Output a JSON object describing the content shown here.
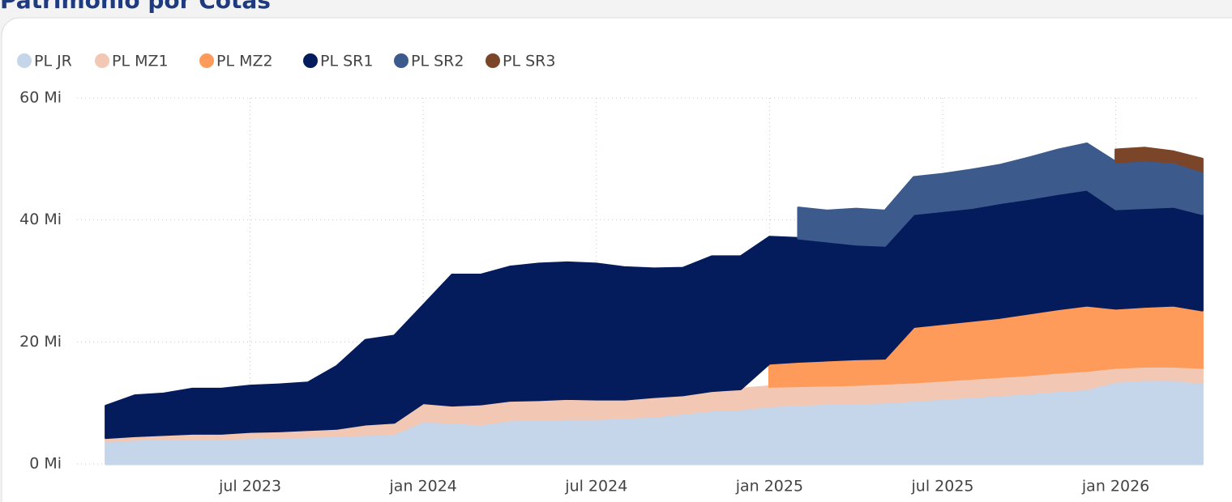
{
  "title": "Patrimônio por Cotas",
  "chart_data": {
    "type": "stacked_area",
    "x": [
      "2023-02",
      "2023-03",
      "2023-04",
      "2023-05",
      "2023-06",
      "2023-07",
      "2023-08",
      "2023-09",
      "2023-10",
      "2023-11",
      "2023-12",
      "2024-01",
      "2024-02",
      "2024-03",
      "2024-04",
      "2024-05",
      "2024-06",
      "2024-07",
      "2024-08",
      "2024-09",
      "2024-10",
      "2024-11",
      "2024-12",
      "2025-01",
      "2025-02",
      "2025-03",
      "2025-04",
      "2025-05",
      "2025-06",
      "2025-07",
      "2025-08",
      "2025-09",
      "2025-10",
      "2025-11",
      "2025-12",
      "2026-01",
      "2026-02",
      "2026-03",
      "2026-04"
    ],
    "series": [
      {
        "name": "PL JR",
        "color": "#c5d5ea",
        "values": [
          3.7,
          4.0,
          4.1,
          4.2,
          4.1,
          4.3,
          4.4,
          4.5,
          4.6,
          4.8,
          5.0,
          7.0,
          6.8,
          6.5,
          7.2,
          7.3,
          7.4,
          7.4,
          7.6,
          7.8,
          8.3,
          8.8,
          9.0,
          9.5,
          9.7,
          9.9,
          10.0,
          10.1,
          10.4,
          10.7,
          11.0,
          11.3,
          11.6,
          12.0,
          12.3,
          13.5,
          13.8,
          13.8,
          13.3
        ]
      },
      {
        "name": "PL MZ1",
        "color": "#f2c8b4",
        "values": [
          0.6,
          0.6,
          0.7,
          0.8,
          0.9,
          1.0,
          1.0,
          1.1,
          1.2,
          1.7,
          1.8,
          3.0,
          2.8,
          3.3,
          3.2,
          3.2,
          3.3,
          3.2,
          3.0,
          3.2,
          3.0,
          3.2,
          3.3,
          3.2,
          3.1,
          3.0,
          3.0,
          3.1,
          3.0,
          3.0,
          3.0,
          3.0,
          3.0,
          3.0,
          3.0,
          2.3,
          2.2,
          2.2,
          2.5
        ]
      },
      {
        "name": "PL MZ2",
        "color": "#fe9a5a",
        "values": [
          null,
          null,
          null,
          null,
          null,
          null,
          null,
          null,
          null,
          null,
          null,
          null,
          null,
          null,
          null,
          null,
          null,
          null,
          null,
          null,
          null,
          null,
          null,
          3.8,
          4.0,
          4.1,
          4.2,
          4.1,
          9.1,
          9.3,
          9.5,
          9.7,
          10.1,
          10.4,
          10.7,
          9.7,
          9.8,
          10.0,
          9.4
        ]
      },
      {
        "name": "PL SR1",
        "color": "#041c5b",
        "values": [
          5.2,
          6.6,
          6.7,
          7.3,
          7.3,
          7.5,
          7.6,
          7.7,
          10.2,
          13.8,
          14.2,
          16.0,
          21.4,
          21.2,
          21.9,
          22.3,
          22.3,
          22.2,
          21.6,
          21.0,
          20.8,
          22.0,
          21.7,
          20.7,
          20.2,
          19.5,
          18.8,
          18.5,
          18.5,
          18.5,
          18.5,
          18.8,
          18.8,
          18.9,
          19.0,
          16.3,
          16.2,
          16.2,
          15.8
        ]
      },
      {
        "name": "PL SR2",
        "color": "#3d5a8c",
        "values": [
          null,
          null,
          null,
          null,
          null,
          null,
          null,
          null,
          null,
          null,
          null,
          null,
          null,
          null,
          null,
          null,
          null,
          null,
          null,
          null,
          null,
          null,
          null,
          null,
          5.0,
          5.0,
          5.8,
          5.7,
          6.0,
          6.0,
          6.2,
          6.2,
          6.7,
          7.2,
          7.5,
          7.7,
          7.8,
          7.3,
          7.0
        ]
      },
      {
        "name": "PL SR3",
        "color": "#7a4529",
        "values": [
          null,
          null,
          null,
          null,
          null,
          null,
          null,
          null,
          null,
          null,
          null,
          null,
          null,
          null,
          null,
          null,
          null,
          null,
          null,
          null,
          null,
          null,
          null,
          null,
          null,
          null,
          null,
          null,
          null,
          null,
          null,
          null,
          null,
          null,
          null,
          2.0,
          2.0,
          1.7,
          2.0
        ]
      }
    ],
    "xlim": [
      "2023-01",
      "2026-04"
    ],
    "xticks": [
      {
        "value": "2023-07",
        "label": "jul 2023"
      },
      {
        "value": "2024-01",
        "label": "jan 2024"
      },
      {
        "value": "2024-07",
        "label": "jul 2024"
      },
      {
        "value": "2025-01",
        "label": "jan 2025"
      },
      {
        "value": "2025-07",
        "label": "jul 2025"
      },
      {
        "value": "2026-01",
        "label": "jan 2026"
      }
    ],
    "ylim": [
      0,
      60
    ],
    "yticks": [
      {
        "value": 0,
        "label": "0 Mi"
      },
      {
        "value": 20,
        "label": "20 Mi"
      },
      {
        "value": 40,
        "label": "40 Mi"
      },
      {
        "value": 60,
        "label": "60 Mi"
      }
    ],
    "grid": true,
    "legend": "top-left"
  }
}
